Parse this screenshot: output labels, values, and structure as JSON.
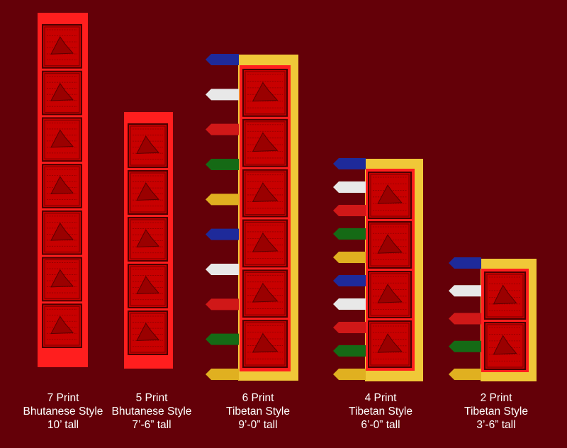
{
  "colors": {
    "background": "#640008",
    "bhutanese_border": "#ff1e1e",
    "tibetan_border": "#f0c838",
    "print_panel": "#c80000",
    "blue": "#1e2a9a",
    "white": "#e8e8e8",
    "red": "#d01818",
    "green": "#156a15",
    "yellow": "#e0b020"
  },
  "flags": [
    {
      "style": "bhutanese",
      "prints": 7,
      "caption": [
        "7 Print",
        "Bhutanese Style",
        "10’ tall"
      ]
    },
    {
      "style": "bhutanese",
      "prints": 5,
      "caption": [
        "5 Print",
        "Bhutanese Style",
        "7’-6” tall"
      ]
    },
    {
      "style": "tibetan",
      "prints": 6,
      "tabs": [
        "blue-tab",
        "white-tab",
        "red-tab",
        "green-tab",
        "yellow-tab",
        "blue-tab",
        "white-tab",
        "red-tab",
        "green-tab",
        "yellow-tab"
      ],
      "caption": [
        "6 Print",
        "Tibetan Style",
        "9’-0” tall"
      ]
    },
    {
      "style": "tibetan",
      "prints": 4,
      "tabs": [
        "blue-tab",
        "white-tab",
        "red-tab",
        "green-tab",
        "yellow-tab",
        "blue-tab",
        "white-tab",
        "red-tab",
        "green-tab",
        "yellow-tab"
      ],
      "caption": [
        "4 Print",
        "Tibetan Style",
        "6’-0” tall"
      ]
    },
    {
      "style": "tibetan",
      "prints": 2,
      "tabs": [
        "blue-tab",
        "white-tab",
        "red-tab",
        "green-tab",
        "yellow-tab"
      ],
      "caption": [
        "2  Print",
        "Tibetan Style",
        "3’-6” tall"
      ]
    }
  ]
}
